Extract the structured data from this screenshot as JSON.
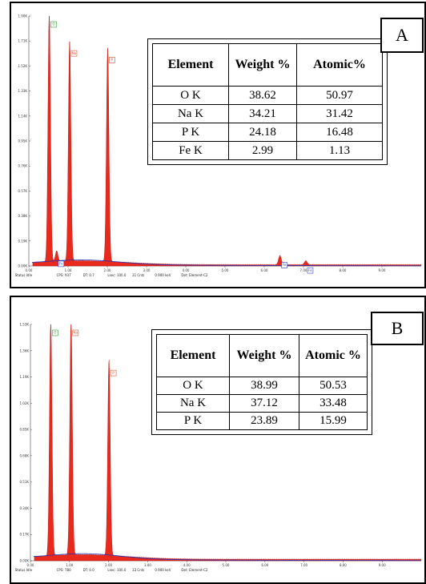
{
  "chart_data": [
    {
      "type": "line",
      "panel_label": "A",
      "x_ticks": [
        "0.00",
        "1.00",
        "2.00",
        "3.00",
        "4.00",
        "5.00",
        "6.00",
        "7.00",
        "8.00",
        "9.00"
      ],
      "y_ticks": [
        "0.00K",
        "0.19K",
        "0.38K",
        "0.57K",
        "0.76K",
        "0.95K",
        "1.14K",
        "1.33K",
        "1.52K",
        "1.71K",
        "1.90K"
      ],
      "xlim": [
        0,
        10
      ],
      "ylim": [
        0,
        1.9
      ],
      "peaks": [
        {
          "x": 0.52,
          "y": 1.9,
          "label": "O",
          "color": "#2ca02c"
        },
        {
          "x": 1.04,
          "y": 1.68,
          "label": "Na",
          "color": "#d9542b"
        },
        {
          "x": 2.01,
          "y": 1.63,
          "label": "P",
          "color": "#d9542b"
        },
        {
          "x": 0.71,
          "y": 0.08,
          "label": "Fe",
          "color": "#3344cc"
        },
        {
          "x": 6.4,
          "y": 0.07,
          "label": "Fe",
          "color": "#3344cc"
        },
        {
          "x": 7.06,
          "y": 0.03,
          "label": "Fe",
          "color": "#3344cc"
        }
      ],
      "status": [
        "Status Idle",
        "CPS: 937",
        "DT: 0.7",
        "Lsec: 100.0",
        "31 Cnts",
        "0.900 keV",
        "Det: Element-C2"
      ],
      "table": {
        "headers": [
          "Element",
          "Weight %",
          "Atomic%"
        ],
        "rows": [
          [
            "O K",
            "38.62",
            "50.97"
          ],
          [
            "Na K",
            "34.21",
            "31.42"
          ],
          [
            "P K",
            "24.18",
            "16.48"
          ],
          [
            "Fe K",
            "2.99",
            "1.13"
          ]
        ]
      }
    },
    {
      "type": "line",
      "panel_label": "B",
      "x_ticks": [
        "0.00",
        "1.00",
        "2.00",
        "3.00",
        "4.00",
        "5.00",
        "6.00",
        "7.00",
        "8.00",
        "9.00"
      ],
      "y_ticks": [
        "0.00K",
        "0.17K",
        "0.34K",
        "0.51K",
        "0.68K",
        "0.85K",
        "1.02K",
        "1.19K",
        "1.36K",
        "1.53K"
      ],
      "xlim": [
        0,
        10
      ],
      "ylim": [
        0,
        1.53
      ],
      "peaks": [
        {
          "x": 0.52,
          "y": 1.53,
          "label": "O",
          "color": "#2ca02c"
        },
        {
          "x": 1.04,
          "y": 1.53,
          "label": "Na",
          "color": "#d9542b"
        },
        {
          "x": 2.01,
          "y": 1.27,
          "label": "P",
          "color": "#d9542b"
        }
      ],
      "status": [
        "Status Idle",
        "CPS: 780",
        "DT: 0.0",
        "Lsec: 100.0",
        "33 Cnts",
        "0.900 keV",
        "Det: Element-C2"
      ],
      "table": {
        "headers": [
          "Element",
          "Weight %",
          "Atomic %"
        ],
        "rows": [
          [
            "O  K",
            "38.99",
            "50.53"
          ],
          [
            "Na K",
            "37.12",
            "33.48"
          ],
          [
            "P  K",
            "23.89",
            "15.99"
          ]
        ]
      }
    }
  ]
}
